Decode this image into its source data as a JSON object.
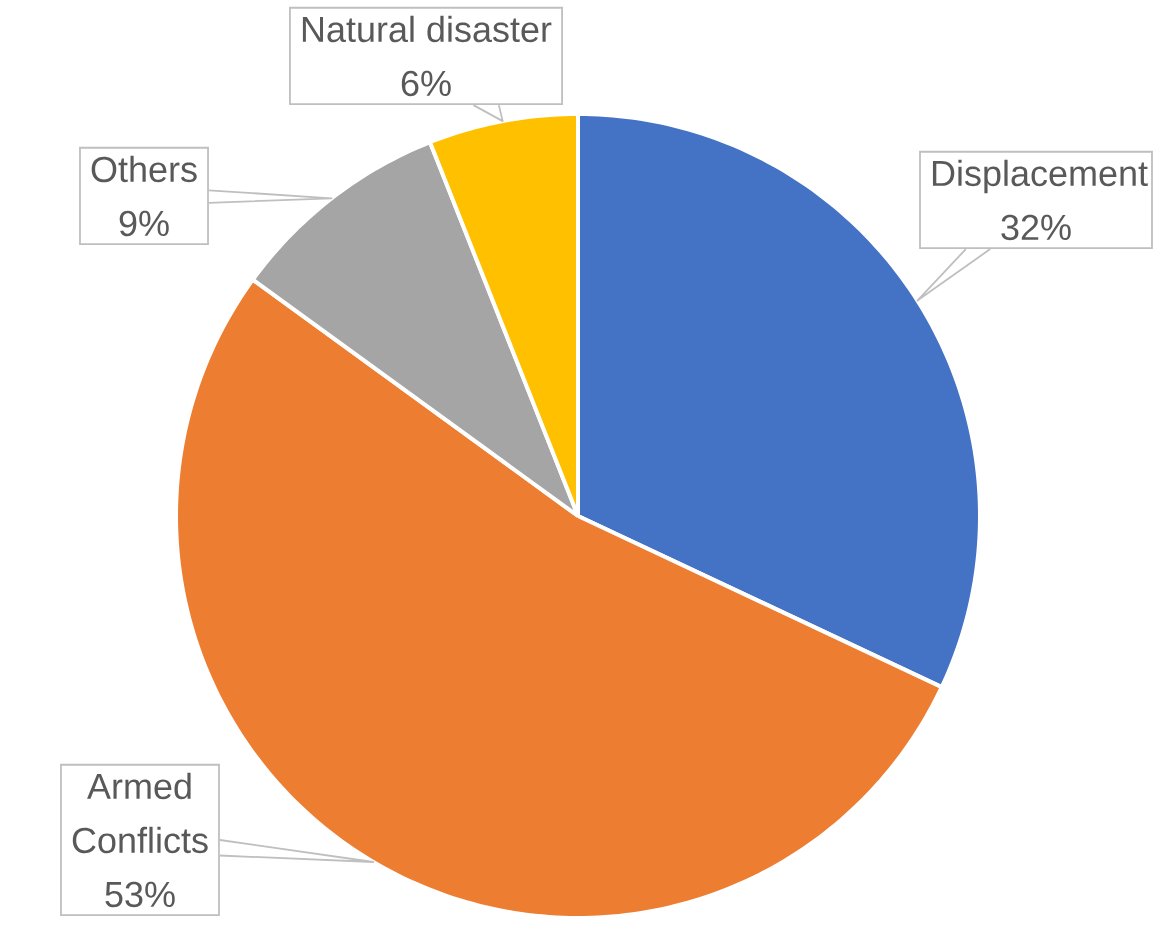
{
  "chart_data": {
    "type": "pie",
    "categories": [
      "Displacement",
      "Armed Conflicts",
      "Others",
      "Natural disaster"
    ],
    "values": [
      32,
      53,
      9,
      6
    ],
    "value_labels": [
      "32%",
      "53%",
      "9%",
      "6%"
    ],
    "colors": [
      "#4472c4",
      "#ed7d31",
      "#a5a5a5",
      "#ffc000"
    ]
  }
}
